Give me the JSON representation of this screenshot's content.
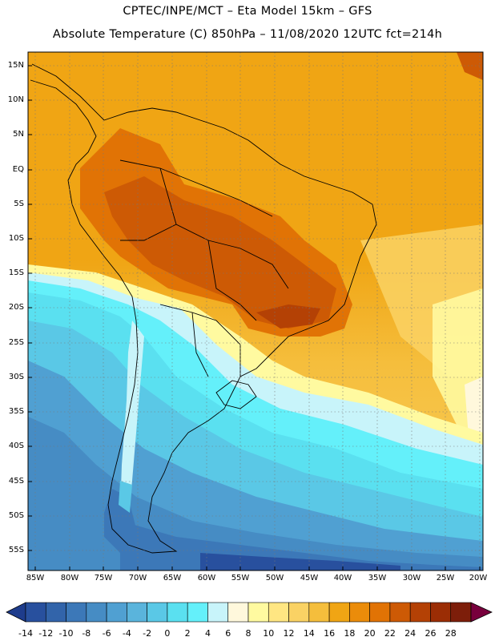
{
  "title_line1": "CPTEC/INPE/MCT –  Eta Model 15km – GFS",
  "title_line2": "Absolute Temperature (C) 850hPa – 11/08/2020 12UTC fct=214h",
  "lat_labels": [
    "15N",
    "10N",
    "5N",
    "EQ",
    "5S",
    "10S",
    "15S",
    "20S",
    "25S",
    "30S",
    "35S",
    "40S",
    "45S",
    "50S",
    "55S"
  ],
  "lon_labels": [
    "85W",
    "80W",
    "75W",
    "70W",
    "65W",
    "60W",
    "55W",
    "50W",
    "45W",
    "40W",
    "35W",
    "30W",
    "25W",
    "20W"
  ],
  "colorbar": {
    "ticks": [
      "-14",
      "-12",
      "-10",
      "-8",
      "-6",
      "-4",
      "-2",
      "0",
      "2",
      "4",
      "6",
      "8",
      "10",
      "12",
      "14",
      "16",
      "18",
      "20",
      "22",
      "24",
      "26",
      "28"
    ],
    "colors": [
      "#1e3c8c",
      "#28509e",
      "#3264aa",
      "#3c78b8",
      "#468cc4",
      "#50a0d2",
      "#5ab4dc",
      "#5ac8e6",
      "#5ae0f0",
      "#64f0fa",
      "#c8f4fa",
      "#fff8dc",
      "#fffaa0",
      "#ffe682",
      "#fad264",
      "#f5be3c",
      "#f0a514",
      "#eb8c0a",
      "#e17305",
      "#cd5a05",
      "#b44105",
      "#9b2d05",
      "#7d1e0a",
      "#78003c"
    ]
  }
}
